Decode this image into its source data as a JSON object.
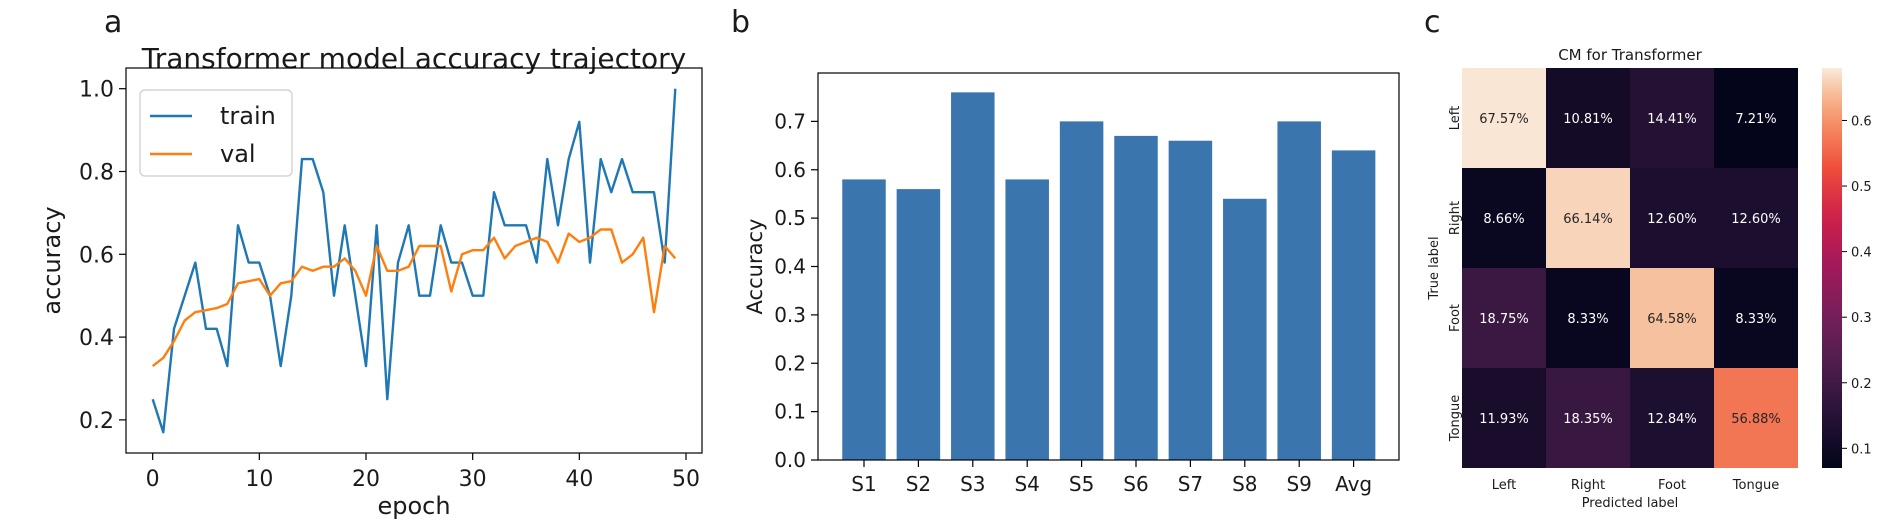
{
  "chart_data": [
    {
      "panel_label": "a",
      "type": "line",
      "title": "Transformer model accuracy trajectory",
      "xlabel": "epoch",
      "ylabel": "accuracy",
      "xlim": [
        -2.5,
        51.5
      ],
      "ylim": [
        0.12,
        1.05
      ],
      "xticks": [
        0,
        10,
        20,
        30,
        40,
        50
      ],
      "yticks": [
        0.2,
        0.4,
        0.6,
        0.8,
        1.0
      ],
      "x": [
        0,
        1,
        2,
        3,
        4,
        5,
        6,
        7,
        8,
        9,
        10,
        11,
        12,
        13,
        14,
        15,
        16,
        17,
        18,
        19,
        20,
        21,
        22,
        23,
        24,
        25,
        26,
        27,
        28,
        29,
        30,
        31,
        32,
        33,
        34,
        35,
        36,
        37,
        38,
        39,
        40,
        41,
        42,
        43,
        44,
        45,
        46,
        47,
        48,
        49
      ],
      "legend": "top-left",
      "series": [
        {
          "name": "train",
          "color": "#1f77b4",
          "values": [
            0.25,
            0.17,
            0.42,
            0.5,
            0.58,
            0.42,
            0.42,
            0.33,
            0.67,
            0.58,
            0.58,
            0.5,
            0.33,
            0.5,
            0.83,
            0.83,
            0.75,
            0.5,
            0.67,
            0.5,
            0.33,
            0.67,
            0.25,
            0.58,
            0.67,
            0.5,
            0.5,
            0.67,
            0.58,
            0.58,
            0.5,
            0.5,
            0.75,
            0.67,
            0.67,
            0.67,
            0.58,
            0.83,
            0.67,
            0.83,
            0.92,
            0.58,
            0.83,
            0.75,
            0.83,
            0.75,
            0.75,
            0.75,
            0.58,
            1.0
          ]
        },
        {
          "name": "val",
          "color": "#ff7f0e",
          "values": [
            0.33,
            0.35,
            0.39,
            0.44,
            0.46,
            0.465,
            0.47,
            0.48,
            0.53,
            0.535,
            0.54,
            0.5,
            0.53,
            0.535,
            0.57,
            0.56,
            0.57,
            0.57,
            0.59,
            0.56,
            0.5,
            0.62,
            0.56,
            0.56,
            0.57,
            0.62,
            0.62,
            0.62,
            0.51,
            0.6,
            0.61,
            0.61,
            0.64,
            0.59,
            0.62,
            0.63,
            0.64,
            0.63,
            0.58,
            0.65,
            0.63,
            0.64,
            0.66,
            0.66,
            0.58,
            0.6,
            0.64,
            0.46,
            0.62,
            0.59
          ]
        }
      ]
    },
    {
      "panel_label": "b",
      "type": "bar",
      "ylabel": "Accuracy",
      "categories": [
        "S1",
        "S2",
        "S3",
        "S4",
        "S5",
        "S6",
        "S7",
        "S8",
        "S9",
        "Avg"
      ],
      "values": [
        0.58,
        0.56,
        0.76,
        0.58,
        0.7,
        0.67,
        0.66,
        0.54,
        0.7,
        0.64
      ],
      "ylim": [
        0.0,
        0.8
      ],
      "yticks": [
        0.0,
        0.1,
        0.2,
        0.3,
        0.4,
        0.5,
        0.6,
        0.7
      ],
      "color": "#3a75ae"
    },
    {
      "panel_label": "c",
      "type": "heatmap",
      "title": "CM for Transformer",
      "xlabel": "Predicted label",
      "ylabel": "True label",
      "rows": [
        "Left",
        "Right",
        "Foot",
        "Tongue"
      ],
      "cols": [
        "Left",
        "Right",
        "Foot",
        "Tongue"
      ],
      "values": [
        [
          0.6757,
          0.1081,
          0.1441,
          0.0721
        ],
        [
          0.0866,
          0.6614,
          0.126,
          0.126
        ],
        [
          0.1875,
          0.0833,
          0.6458,
          0.0833
        ],
        [
          0.1193,
          0.1835,
          0.1284,
          0.5688
        ]
      ],
      "labels": [
        [
          "67.57%",
          "10.81%",
          "14.41%",
          "7.21%"
        ],
        [
          "8.66%",
          "66.14%",
          "12.60%",
          "12.60%"
        ],
        [
          "18.75%",
          "8.33%",
          "64.58%",
          "8.33%"
        ],
        [
          "11.93%",
          "18.35%",
          "12.84%",
          "56.88%"
        ]
      ],
      "colorbar": {
        "range": [
          0.07,
          0.68
        ],
        "ticks": [
          0.1,
          0.2,
          0.3,
          0.4,
          0.5,
          0.6
        ],
        "colormap": "rocket"
      }
    }
  ]
}
